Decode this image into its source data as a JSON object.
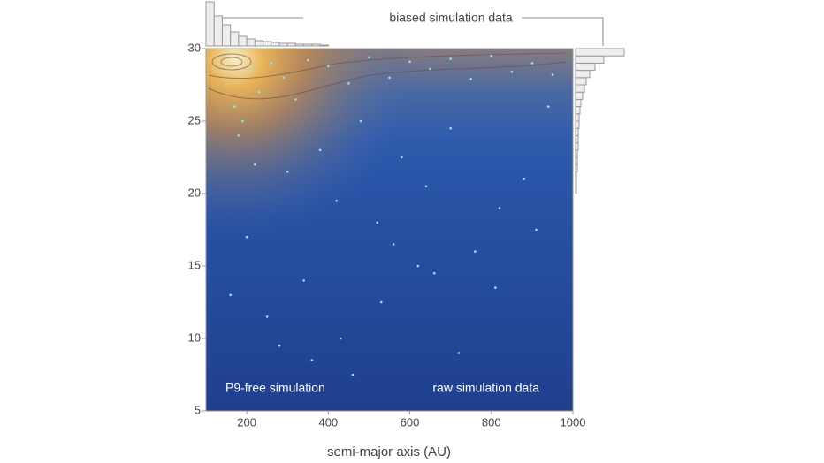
{
  "chart_data": {
    "type": "density",
    "xlabel": "semi-major axis (AU)",
    "xlim": [
      100,
      1000
    ],
    "ylim": [
      5,
      30
    ],
    "xticks": [
      200,
      400,
      600,
      800,
      1000
    ],
    "yticks": [
      5,
      10,
      15,
      20,
      25,
      30
    ],
    "annotations": [
      "biased simulation data",
      "P9-free simulation",
      "raw simulation data"
    ],
    "scatter": {
      "color": "#8fe6f2",
      "x": [
        150,
        170,
        190,
        210,
        230,
        260,
        290,
        320,
        350,
        400,
        450,
        500,
        550,
        600,
        650,
        700,
        750,
        800,
        850,
        900,
        950,
        180,
        220,
        300,
        380,
        420,
        480,
        520,
        580,
        640,
        700,
        760,
        820,
        880,
        940,
        160,
        250,
        340,
        430,
        530,
        620,
        720,
        810,
        910,
        200,
        280,
        360,
        460,
        560,
        660
      ],
      "y": [
        27.5,
        26,
        25,
        28.5,
        27,
        29,
        28,
        26.5,
        29.2,
        28.8,
        27.6,
        29.4,
        28,
        29.1,
        28.6,
        29.3,
        27.9,
        29.5,
        28.4,
        29,
        28.2,
        24,
        22,
        21.5,
        23,
        19.5,
        25,
        18,
        22.5,
        20.5,
        24.5,
        16,
        19,
        21,
        26,
        13,
        11.5,
        14,
        10,
        12.5,
        15,
        9,
        13.5,
        17.5,
        17,
        9.5,
        8.5,
        7.5,
        16.5,
        14.5
      ]
    },
    "x_histogram": {
      "bins": [
        100,
        120,
        140,
        160,
        180,
        200,
        220,
        240,
        260,
        280,
        300,
        320,
        340,
        360,
        380,
        400
      ],
      "counts": [
        50,
        34,
        24,
        16,
        11,
        8,
        6,
        5,
        4,
        3,
        3,
        2,
        2,
        2,
        1
      ]
    },
    "y_histogram": {
      "bins": [
        20,
        20.5,
        21,
        21.5,
        22,
        22.5,
        23,
        23.5,
        24,
        24.5,
        25,
        25.5,
        26,
        26.5,
        27,
        27.5,
        28,
        28.5,
        29,
        29.5,
        30
      ],
      "counts": [
        1,
        1,
        1,
        2,
        2,
        2,
        3,
        3,
        3,
        4,
        4,
        5,
        6,
        8,
        10,
        12,
        16,
        22,
        32,
        55
      ]
    }
  }
}
